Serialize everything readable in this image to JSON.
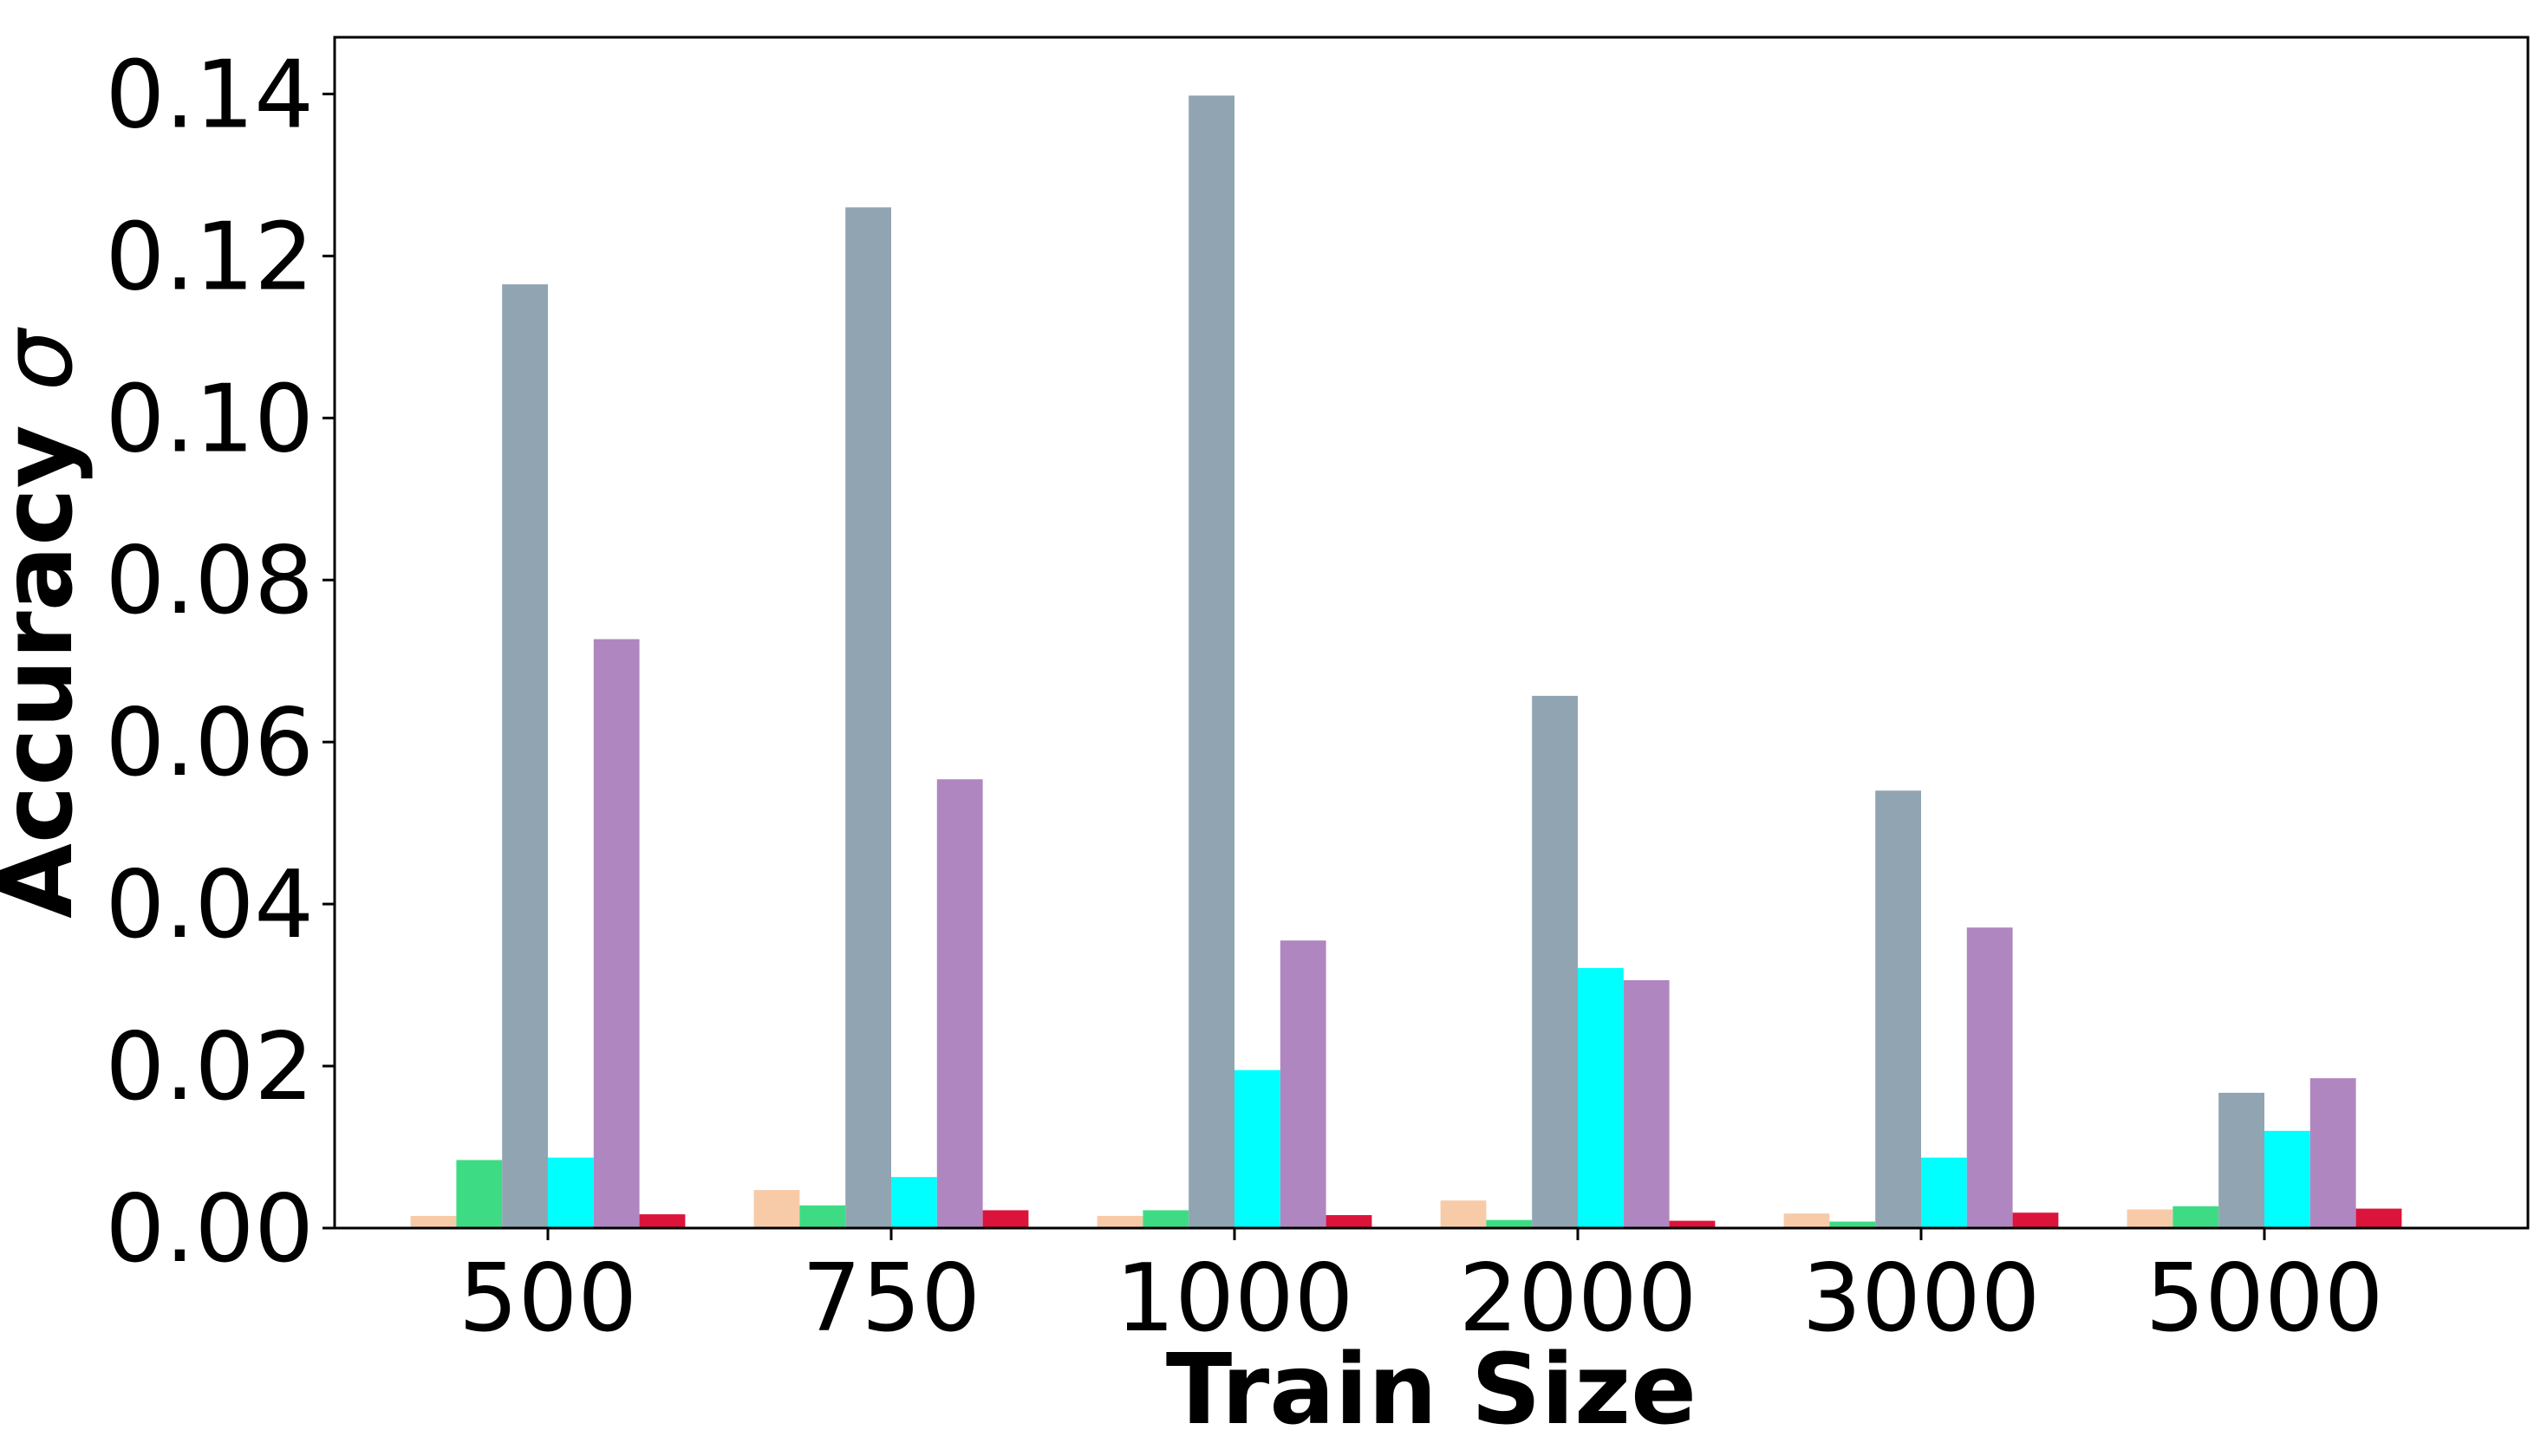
{
  "chart_data": {
    "type": "bar",
    "xlabel": "Train Size",
    "ylabel_text": "Accuracy",
    "ylabel_symbol": "σ",
    "categories": [
      "500",
      "750",
      "1000",
      "2000",
      "3000",
      "5000"
    ],
    "ylim": [
      0,
      0.147
    ],
    "yticks": [
      "0.00",
      "0.02",
      "0.04",
      "0.06",
      "0.08",
      "0.10",
      "0.12",
      "0.14"
    ],
    "ytick_values": [
      0,
      0.02,
      0.04,
      0.06,
      0.08,
      0.1,
      0.12,
      0.14
    ],
    "grid": false,
    "legend": "none",
    "series": [
      {
        "color": "#f8cba8",
        "values": [
          0.0015,
          0.0047,
          0.0015,
          0.0034,
          0.0018,
          0.0023
        ]
      },
      {
        "color": "#3ddc84",
        "values": [
          0.0084,
          0.0028,
          0.0022,
          0.001,
          0.0008,
          0.0027
        ]
      },
      {
        "color": "#91a4b1",
        "values": [
          0.1165,
          0.126,
          0.1398,
          0.0657,
          0.054,
          0.0167
        ]
      },
      {
        "color": "#00ffff",
        "values": [
          0.0087,
          0.0063,
          0.0195,
          0.0321,
          0.0087,
          0.012
        ]
      },
      {
        "color": "#b086c0",
        "values": [
          0.0727,
          0.0554,
          0.0355,
          0.0306,
          0.0371,
          0.0185
        ]
      },
      {
        "color": "#dc143c",
        "values": [
          0.0017,
          0.0022,
          0.0016,
          0.0009,
          0.0019,
          0.0024
        ]
      }
    ]
  }
}
